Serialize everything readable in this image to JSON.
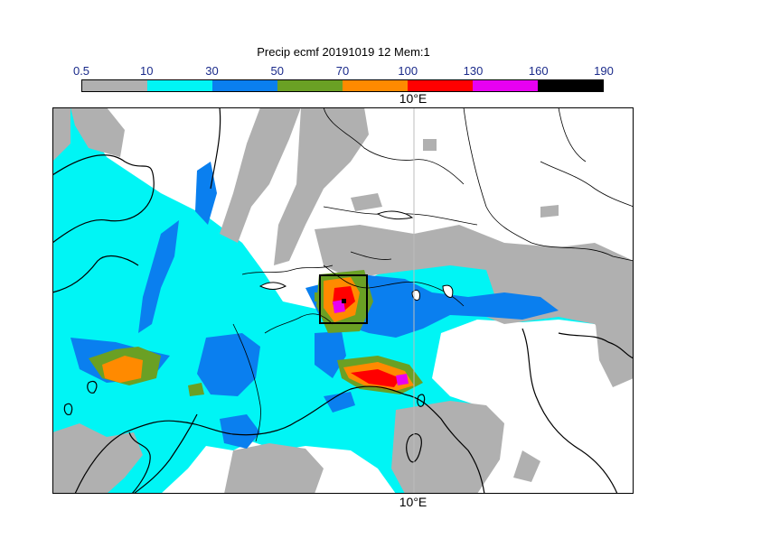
{
  "title": "Precip ecmf 20191019 12 Mem:1",
  "legend": {
    "ticks": [
      "0.5",
      "10",
      "30",
      "50",
      "70",
      "100",
      "130",
      "160",
      "190"
    ],
    "colors": [
      "#b0b0b0",
      "#00f5f5",
      "#0a7fef",
      "#6aa024",
      "#ff8a00",
      "#ff0000",
      "#e800f2",
      "#000000"
    ]
  },
  "map": {
    "lon_label_top": "10°E",
    "lon_label_bottom": "10°E",
    "land_color": "#ffffff",
    "grid_color": "#bdbdbd"
  }
}
